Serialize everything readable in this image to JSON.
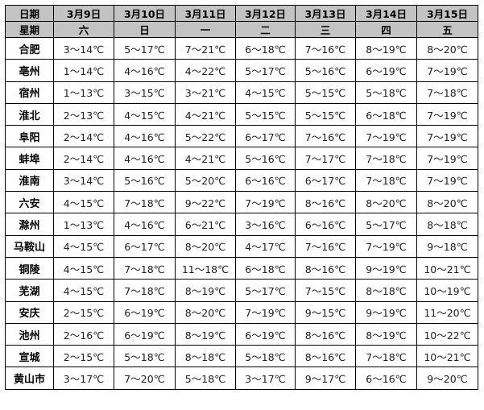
{
  "header": {
    "date_label": "日期",
    "weekday_label": "星期",
    "dates": [
      "3月9日",
      "3月10日",
      "3月11日",
      "3月12日",
      "3月13日",
      "3月14日",
      "3月15日"
    ],
    "weekdays": [
      "六",
      "日",
      "一",
      "二",
      "三",
      "四",
      "五"
    ]
  },
  "rows": [
    {
      "city": "合肥",
      "temps": [
        "3～14℃",
        "5～17℃",
        "7～21℃",
        "6～18℃",
        "7～16℃",
        "8～19℃",
        "8～20℃"
      ]
    },
    {
      "city": "亳州",
      "temps": [
        "1～14℃",
        "4～16℃",
        "4～22℃",
        "5～17℃",
        "5～16℃",
        "6～19℃",
        "7～19℃"
      ]
    },
    {
      "city": "宿州",
      "temps": [
        "1～13℃",
        "3～15℃",
        "3～21℃",
        "4～15℃",
        "5～15℃",
        "5～18℃",
        "7～18℃"
      ]
    },
    {
      "city": "淮北",
      "temps": [
        "2～13℃",
        "4～15℃",
        "4～21℃",
        "5～15℃",
        "5～15℃",
        "6～18℃",
        "7～19℃"
      ]
    },
    {
      "city": "阜阳",
      "temps": [
        "2～14℃",
        "4～16℃",
        "5～22℃",
        "6～17℃",
        "7～16℃",
        "7～19℃",
        "7～19℃"
      ]
    },
    {
      "city": "蚌埠",
      "temps": [
        "2～14℃",
        "4～16℃",
        "4～21℃",
        "5～16℃",
        "7～17℃",
        "7～18℃",
        "7～19℃"
      ]
    },
    {
      "city": "淮南",
      "temps": [
        "3～14℃",
        "5～16℃",
        "5～20℃",
        "6～16℃",
        "6～17℃",
        "7～18℃",
        "7～19℃"
      ]
    },
    {
      "city": "六安",
      "temps": [
        "4～15℃",
        "7～18℃",
        "9～22℃",
        "7～19℃",
        "8～16℃",
        "8～20℃",
        "8～20℃"
      ]
    },
    {
      "city": "滁州",
      "temps": [
        "1～13℃",
        "4～16℃",
        "6～21℃",
        "3～16℃",
        "6～16℃",
        "5～17℃",
        "8～18℃"
      ]
    },
    {
      "city": "马鞍山",
      "temps": [
        "4～15℃",
        "6～17℃",
        "8～20℃",
        "4～17℃",
        "7～16℃",
        "7～19℃",
        "9～18℃"
      ]
    },
    {
      "city": "铜陵",
      "temps": [
        "4～15℃",
        "7～18℃",
        "11～18℃",
        "6～18℃",
        "8～16℃",
        "9～19℃",
        "10～21℃"
      ]
    },
    {
      "city": "芜湖",
      "temps": [
        "4～15℃",
        "7～18℃",
        "8～19℃",
        "5～17℃",
        "7～15℃",
        "8～18℃",
        "10～19℃"
      ]
    },
    {
      "city": "安庆",
      "temps": [
        "2～15℃",
        "6～19℃",
        "8～20℃",
        "7～19℃",
        "9～15℃",
        "9～19℃",
        "11～20℃"
      ]
    },
    {
      "city": "池州",
      "temps": [
        "2～16℃",
        "6～19℃",
        "8～19℃",
        "6～19℃",
        "8～16℃",
        "8～19℃",
        "10～22℃"
      ]
    },
    {
      "city": "宣城",
      "temps": [
        "2～15℃",
        "5～18℃",
        "8～18℃",
        "5～18℃",
        "8～16℃",
        "7～18℃",
        "10～21℃"
      ]
    },
    {
      "city": "黄山市",
      "temps": [
        "3～17℃",
        "7～20℃",
        "5～18℃",
        "3～17℃",
        "9～17℃",
        "6～16℃",
        "9～20℃"
      ]
    }
  ]
}
